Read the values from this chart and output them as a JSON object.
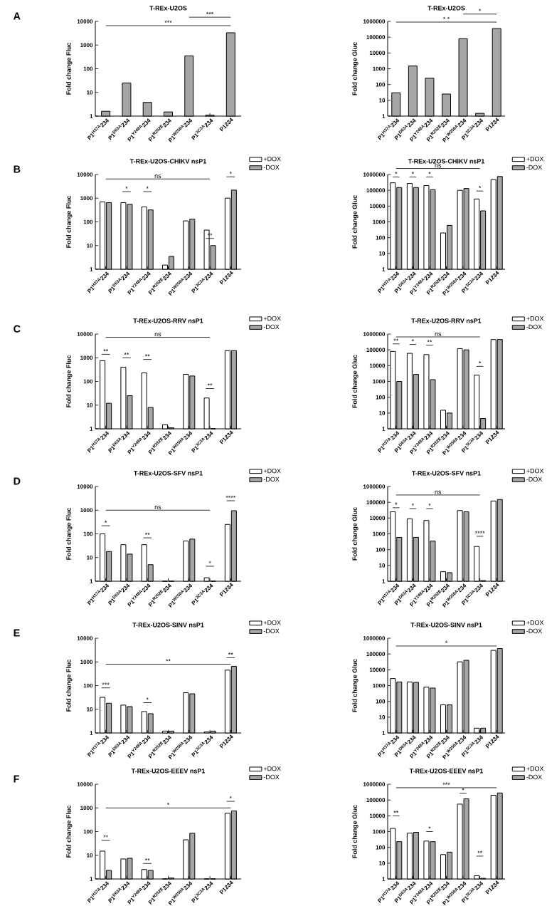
{
  "chart_data": [
    {
      "type": "bar",
      "title": "T-REx-U2OS",
      "ylabel": "Fold change Fluc",
      "log": true,
      "ylim": [
        1,
        10000
      ],
      "yticks": [
        1,
        10,
        100,
        1000,
        10000
      ],
      "categories": [
        "P1$^{H37A}$234",
        "P1$^{D63A}$234",
        "P1$^{Y248A}$234",
        "P1$^{R252E}$234",
        "P1$^{W258A}$234",
        "P1$^{3C3A}$234",
        "P1234"
      ],
      "series": [
        {
          "color": "#a6a6a6",
          "values": [
            1.6,
            25,
            3.8,
            1.5,
            350,
            1.1,
            3300
          ]
        }
      ],
      "annotations": [
        "A",
        "***",
        "***"
      ]
    },
    {
      "type": "bar",
      "title": "T-REx-U2OS",
      "ylabel": "Fold change Gluc",
      "log": true,
      "ylim": [
        1,
        1000000
      ],
      "yticks": [
        1,
        10,
        100,
        1000,
        10000,
        100000,
        1000000
      ],
      "categories": [
        "P1$^{H37A}$234",
        "P1$^{D63A}$234",
        "P1$^{Y248A}$234",
        "P1$^{R252E}$234",
        "P1$^{W258A}$234",
        "P1$^{3C3A}$234",
        "P1234"
      ],
      "series": [
        {
          "color": "#a6a6a6",
          "values": [
            30,
            1500,
            250,
            25,
            80000,
            1.5,
            350000
          ]
        }
      ],
      "annotations": [
        "* *",
        "*"
      ]
    },
    {
      "type": "bar",
      "title": "T-REx-U2OS-CHIKV nsP1",
      "ylabel": "Fold change Fluc",
      "log": true,
      "ylim": [
        1,
        10000
      ],
      "yticks": [
        1,
        10,
        100,
        1000,
        10000
      ],
      "legend": "top right",
      "categories": [
        "P1$^{H37A}$234",
        "P1$^{D63A}$234",
        "P1$^{Y248A}$234",
        "P1$^{R252E}$234",
        "P1$^{W258A}$234",
        "P1$^{3C3A}$234",
        "P1234"
      ],
      "series": [
        {
          "name": "+DOX",
          "color": "#ffffff",
          "values": [
            700,
            650,
            430,
            1.5,
            110,
            45,
            1000
          ]
        },
        {
          "name": "-DOX",
          "color": "#a6a6a6",
          "values": [
            650,
            550,
            320,
            3.5,
            130,
            10,
            2200
          ]
        }
      ],
      "annotations": [
        "B",
        "ns",
        "*",
        "*",
        "**",
        "*"
      ]
    },
    {
      "type": "bar",
      "title": "T-REx-U2OS-CHIKV nsP1",
      "ylabel": "Fold change Gluc",
      "log": true,
      "ylim": [
        1,
        1000000
      ],
      "yticks": [
        1,
        10,
        100,
        1000,
        10000,
        100000,
        1000000
      ],
      "legend": "top right",
      "categories": [
        "P1$^{H37A}$234",
        "P1$^{D63A}$234",
        "P1$^{Y248A}$234",
        "P1$^{R252E}$234",
        "P1$^{W258A}$234",
        "P1$^{3C3A}$234",
        "P1234"
      ],
      "series": [
        {
          "name": "+DOX",
          "color": "#ffffff",
          "values": [
            300000,
            270000,
            200000,
            200,
            100000,
            28000,
            480000
          ]
        },
        {
          "name": "-DOX",
          "color": "#a6a6a6",
          "values": [
            150000,
            150000,
            110000,
            600,
            130000,
            5000,
            750000
          ]
        }
      ],
      "annotations": [
        "*",
        "*",
        "*",
        "ns",
        "*"
      ]
    },
    {
      "type": "bar",
      "title": "T-REx-U2OS-RRV nsP1",
      "ylabel": "Fold change Fluc",
      "log": true,
      "ylim": [
        1,
        10000
      ],
      "yticks": [
        1,
        10,
        100,
        1000,
        10000
      ],
      "legend": "top right",
      "categories": [
        "P1$^{H37A}$234",
        "P1$^{D63A}$234",
        "P1$^{Y248A}$234",
        "P1$^{R252E}$234",
        "P1$^{W258A}$234",
        "P1$^{3C3A}$234",
        "P1234"
      ],
      "series": [
        {
          "name": "+DOX",
          "color": "#ffffff",
          "values": [
            750,
            400,
            230,
            1.5,
            200,
            20,
            2000
          ]
        },
        {
          "name": "-DOX",
          "color": "#a6a6a6",
          "values": [
            12,
            25,
            8,
            1.1,
            170,
            1,
            2000
          ]
        }
      ],
      "annotations": [
        "C",
        "ns",
        "**",
        "**",
        "**",
        "**"
      ]
    },
    {
      "type": "bar",
      "title": "T-REx-U2OS-RRV nsP1",
      "ylabel": "Fold change Gluc",
      "log": true,
      "ylim": [
        1,
        1000000
      ],
      "yticks": [
        1,
        10,
        100,
        1000,
        10000,
        100000,
        1000000
      ],
      "legend": "top right",
      "categories": [
        "P1$^{H37A}$234",
        "P1$^{D63A}$234",
        "P1$^{Y248A}$234",
        "P1$^{R252E}$234",
        "P1$^{W258A}$234",
        "P1$^{3C3A}$234",
        "P1234"
      ],
      "series": [
        {
          "name": "+DOX",
          "color": "#ffffff",
          "values": [
            80000,
            60000,
            50000,
            15,
            120000,
            2500,
            450000
          ]
        },
        {
          "name": "-DOX",
          "color": "#a6a6a6",
          "values": [
            1000,
            2800,
            1300,
            10,
            100000,
            4.5,
            450000
          ]
        }
      ],
      "annotations": [
        "ns",
        "**",
        "*",
        "**",
        "*"
      ]
    },
    {
      "type": "bar",
      "title": "T-REx-U2OS-SFV nsP1",
      "ylabel": "Fold change Fluc",
      "log": true,
      "ylim": [
        1,
        10000
      ],
      "yticks": [
        1,
        10,
        100,
        1000,
        10000
      ],
      "legend": "top right",
      "categories": [
        "P1$^{H37A}$234",
        "P1$^{D63A}$234",
        "P1$^{Y248A}$234",
        "P1$^{R252E}$234",
        "P1$^{W258A}$234",
        "P1$^{3C3A}$234",
        "P1234"
      ],
      "series": [
        {
          "name": "+DOX",
          "color": "#ffffff",
          "values": [
            100,
            35,
            35,
            1,
            50,
            1.4,
            250
          ]
        },
        {
          "name": "-DOX",
          "color": "#a6a6a6",
          "values": [
            18,
            14,
            5,
            1,
            60,
            1,
            950
          ]
        }
      ],
      "annotations": [
        "D",
        "ns",
        "*",
        "**",
        "*",
        "****"
      ]
    },
    {
      "type": "bar",
      "title": "T-REx-U2OS-SFV nsP1",
      "ylabel": "Fold change Gluc",
      "log": true,
      "ylim": [
        1,
        1000000
      ],
      "yticks": [
        1,
        10,
        100,
        1000,
        10000,
        100000,
        1000000
      ],
      "legend": "top right",
      "categories": [
        "P1$^{H37A}$234",
        "P1$^{D63A}$234",
        "P1$^{Y248A}$234",
        "P1$^{R252E}$234",
        "P1$^{W258A}$234",
        "P1$^{3C3A}$234",
        "P1234"
      ],
      "series": [
        {
          "name": "+DOX",
          "color": "#ffffff",
          "values": [
            25000,
            9000,
            7000,
            4,
            30000,
            160,
            120000
          ]
        },
        {
          "name": "-DOX",
          "color": "#a6a6a6",
          "values": [
            600,
            600,
            350,
            3.5,
            25000,
            1.1,
            150000
          ]
        }
      ],
      "annotations": [
        "ns",
        "*",
        "*",
        "*",
        "****"
      ]
    },
    {
      "type": "bar",
      "title": "T-REx-U2OS-SINV nsP1",
      "ylabel": "Fold change Fluc",
      "log": true,
      "ylim": [
        1,
        10000
      ],
      "yticks": [
        1,
        10,
        100,
        1000,
        10000
      ],
      "legend": "top right",
      "categories": [
        "P1$^{H37A}$234",
        "P1$^{D63A}$234",
        "P1$^{Y248A}$234",
        "P1$^{R252E}$234",
        "P1$^{W258A}$234",
        "P1$^{3C3A}$234",
        "P1234"
      ],
      "series": [
        {
          "name": "+DOX",
          "color": "#ffffff",
          "values": [
            32,
            15,
            8,
            1.2,
            50,
            1.1,
            450
          ]
        },
        {
          "name": "-DOX",
          "color": "#a6a6a6",
          "values": [
            18,
            13,
            6.5,
            1.2,
            45,
            1.2,
            650
          ]
        }
      ],
      "annotations": [
        "E",
        "**",
        "***",
        "*",
        "**"
      ]
    },
    {
      "type": "bar",
      "title": "T-REx-U2OS-SINV nsP1",
      "ylabel": "Fold change Gluc",
      "log": true,
      "ylim": [
        1,
        1000000
      ],
      "yticks": [
        1,
        10,
        100,
        1000,
        10000,
        100000,
        1000000
      ],
      "legend": "top right",
      "categories": [
        "P1$^{H37A}$234",
        "P1$^{D63A}$234",
        "P1$^{Y248A}$234",
        "P1$^{R252E}$234",
        "P1$^{W258A}$234",
        "P1$^{3C3A}$234",
        "P1234"
      ],
      "series": [
        {
          "name": "+DOX",
          "color": "#ffffff",
          "values": [
            2800,
            1700,
            800,
            60,
            32000,
            2,
            170000
          ]
        },
        {
          "name": "-DOX",
          "color": "#a6a6a6",
          "values": [
            1700,
            1600,
            700,
            60,
            40000,
            2,
            220000
          ]
        }
      ],
      "annotations": [
        "*"
      ]
    },
    {
      "type": "bar",
      "title": "T-REx-U2OS-EEEV nsP1",
      "ylabel": "Fold change Fluc",
      "log": true,
      "ylim": [
        1,
        10000
      ],
      "yticks": [
        1,
        10,
        100,
        1000,
        10000
      ],
      "legend": "top right",
      "categories": [
        "P1$^{H37A}$234",
        "P1$^{D63A}$234",
        "P1$^{Y248A}$234",
        "P1$^{R252E}$234",
        "P1$^{W258A}$234",
        "P1$^{3C3A}$234",
        "P1234"
      ],
      "series": [
        {
          "name": "+DOX",
          "color": "#ffffff",
          "values": [
            15,
            7,
            2.5,
            1,
            45,
            1,
            600
          ]
        },
        {
          "name": "-DOX",
          "color": "#a6a6a6",
          "values": [
            2.3,
            7.5,
            2.3,
            1.1,
            85,
            1,
            750
          ]
        }
      ],
      "annotations": [
        "F",
        "*",
        "**",
        "**",
        "*"
      ]
    },
    {
      "type": "bar",
      "title": "T-REx-U2OS-EEEV nsP1",
      "ylabel": "Fold change Gluc",
      "log": true,
      "ylim": [
        1,
        1000000
      ],
      "yticks": [
        1,
        10,
        100,
        1000,
        10000,
        100000,
        1000000
      ],
      "legend": "top right",
      "categories": [
        "P1$^{H37A}$234",
        "P1$^{D63A}$234",
        "P1$^{Y248A}$234",
        "P1$^{R252E}$234",
        "P1$^{W258A}$234",
        "P1$^{3C3A}$234",
        "P1234"
      ],
      "series": [
        {
          "name": "+DOX",
          "color": "#ffffff",
          "values": [
            1600,
            800,
            250,
            35,
            55000,
            1.6,
            200000
          ]
        },
        {
          "name": "-DOX",
          "color": "#a6a6a6",
          "values": [
            230,
            900,
            230,
            50,
            120000,
            1.1,
            280000
          ]
        }
      ],
      "annotations": [
        "***",
        "**",
        "*",
        "*",
        "**"
      ]
    }
  ]
}
